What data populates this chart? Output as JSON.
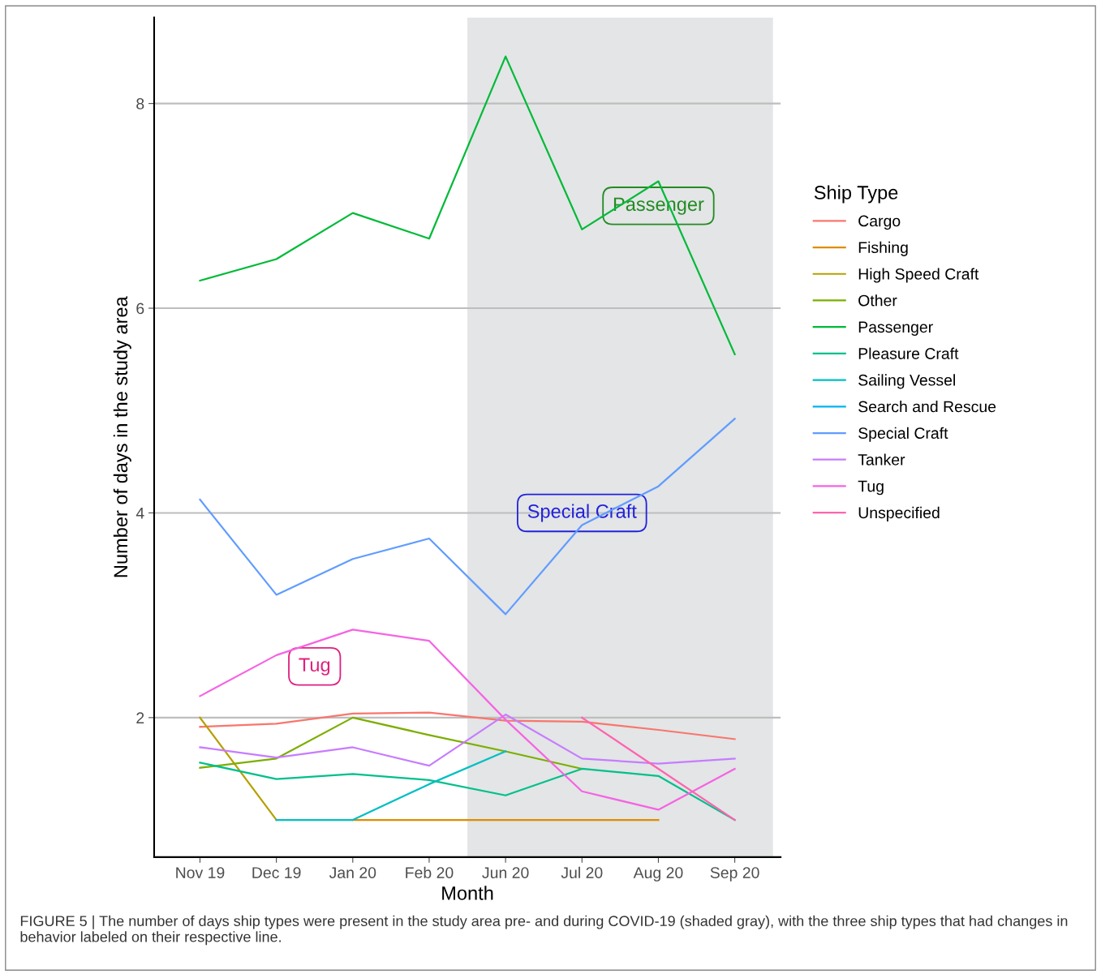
{
  "chart_data": {
    "type": "line",
    "xlabel": "Month",
    "ylabel": "Number of days in the study area",
    "legend_title": "Ship Type",
    "categories": [
      "Nov 19",
      "Dec 19",
      "Jan 20",
      "Feb 20",
      "Jun 20",
      "Jul 20",
      "Aug 20",
      "Sep 20"
    ],
    "series": [
      {
        "name": "Cargo",
        "color": "#f8766d",
        "values": [
          1.91,
          1.94,
          2.04,
          2.05,
          1.97,
          1.96,
          1.88,
          1.79
        ]
      },
      {
        "name": "Fishing",
        "color": "#de8c00",
        "values": [
          null,
          null,
          1.0,
          1.0,
          1.0,
          1.0,
          1.0,
          null
        ]
      },
      {
        "name": "High Speed Craft",
        "color": "#b79f00",
        "values": [
          2.0,
          1.0,
          null,
          null,
          null,
          null,
          null,
          null
        ]
      },
      {
        "name": "Other",
        "color": "#7cae00",
        "values": [
          1.51,
          1.6,
          2.0,
          1.83,
          1.67,
          1.5,
          null,
          null
        ]
      },
      {
        "name": "Passenger",
        "color": "#00ba38",
        "values": [
          6.27,
          6.48,
          6.93,
          6.68,
          8.46,
          6.77,
          7.24,
          5.55
        ]
      },
      {
        "name": "Pleasure Craft",
        "color": "#00c08b",
        "values": [
          1.56,
          1.4,
          1.45,
          1.39,
          1.24,
          1.5,
          1.43,
          1.0
        ]
      },
      {
        "name": "Sailing Vessel",
        "color": "#00bfc4",
        "values": [
          null,
          1.0,
          1.0,
          1.35,
          1.67,
          null,
          null,
          null
        ]
      },
      {
        "name": "Search and Rescue",
        "color": "#00b4f0",
        "values": [
          null,
          null,
          null,
          null,
          null,
          null,
          null,
          null
        ]
      },
      {
        "name": "Special Craft",
        "color": "#619cff",
        "values": [
          4.13,
          3.2,
          3.55,
          3.75,
          3.01,
          3.88,
          4.26,
          4.92
        ]
      },
      {
        "name": "Tanker",
        "color": "#c77cff",
        "values": [
          1.71,
          1.61,
          1.71,
          1.53,
          2.03,
          1.6,
          1.55,
          1.6
        ]
      },
      {
        "name": "Tug",
        "color": "#f564e3",
        "values": [
          2.21,
          2.61,
          2.86,
          2.75,
          1.98,
          1.28,
          1.1,
          1.5
        ]
      },
      {
        "name": "Unspecified",
        "color": "#ff64b0",
        "values": [
          null,
          null,
          null,
          null,
          null,
          2.0,
          1.5,
          1.0
        ]
      }
    ],
    "ylim": [
      0.637,
      8.84
    ],
    "yticks": [
      2,
      4,
      6,
      8
    ],
    "grid": "y",
    "legend": "right",
    "annotations": [
      "Passenger",
      "Special Craft",
      "Tug",
      "FIGURE 5 | The number of days ship types were present in the study area pre- and during COVID-19 (shaded gray), with the three ship types that had changes in behavior labeled on their respective line."
    ]
  }
}
